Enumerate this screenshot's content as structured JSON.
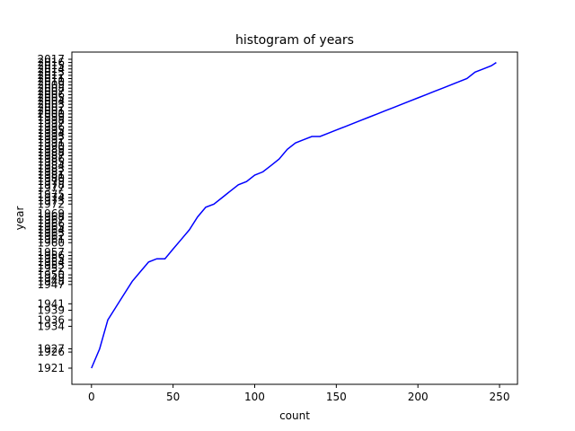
{
  "chart_data": {
    "type": "line",
    "title": "histogram of years",
    "xlabel": "count",
    "ylabel": "year",
    "xlim": [
      -12,
      261
    ],
    "x_ticks": [
      0,
      50,
      100,
      150,
      200,
      250
    ],
    "y_ticks": [
      "1921",
      "1926",
      "1927",
      "1934",
      "1936",
      "1939",
      "1941",
      "1947",
      "1948",
      "1949",
      "1950",
      "1952",
      "1953",
      "1954",
      "1955",
      "1956",
      "1957",
      "1960",
      "1961",
      "1962",
      "1963",
      "1964",
      "1965",
      "1966",
      "1967",
      "1968",
      "1969",
      "1972",
      "1973",
      "1974",
      "1975",
      "1977",
      "1978",
      "1979",
      "1980",
      "1981",
      "1982",
      "1983",
      "1984",
      "1985",
      "1986",
      "1987",
      "1988",
      "1989",
      "1990",
      "1991",
      "1992",
      "1993",
      "1994",
      "1995",
      "1996",
      "1997",
      "1998",
      "1999",
      "2000",
      "2001",
      "2002",
      "2003",
      "2004",
      "2005",
      "2006",
      "2007",
      "2008",
      "2009",
      "2010",
      "2011",
      "2012",
      "2013",
      "2014",
      "2015",
      "2016",
      "2017"
    ],
    "grid": false,
    "series": [
      {
        "color": "#0000ff",
        "x": [
          0,
          5,
          10,
          15,
          20,
          25,
          30,
          35,
          40,
          45,
          50,
          55,
          60,
          65,
          70,
          75,
          80,
          85,
          90,
          95,
          100,
          105,
          110,
          115,
          120,
          125,
          130,
          135,
          140,
          145,
          150,
          155,
          160,
          165,
          170,
          175,
          180,
          185,
          190,
          195,
          200,
          205,
          210,
          215,
          220,
          225,
          230,
          235,
          240,
          245,
          248
        ],
        "y": [
          1921,
          1927,
          1936,
          1940,
          1944,
          1948,
          1951,
          1954,
          1955,
          1955,
          1958,
          1961,
          1964,
          1968,
          1971,
          1972,
          1974,
          1976,
          1978,
          1979,
          1981,
          1982,
          1984,
          1986,
          1989,
          1991,
          1992,
          1993,
          1993,
          1994,
          1995,
          1996,
          1997,
          1998,
          1999,
          2000,
          2001,
          2002,
          2003,
          2004,
          2005,
          2006,
          2007,
          2008,
          2009,
          2010,
          2011,
          2013,
          2014,
          2015,
          2016
        ]
      }
    ]
  }
}
